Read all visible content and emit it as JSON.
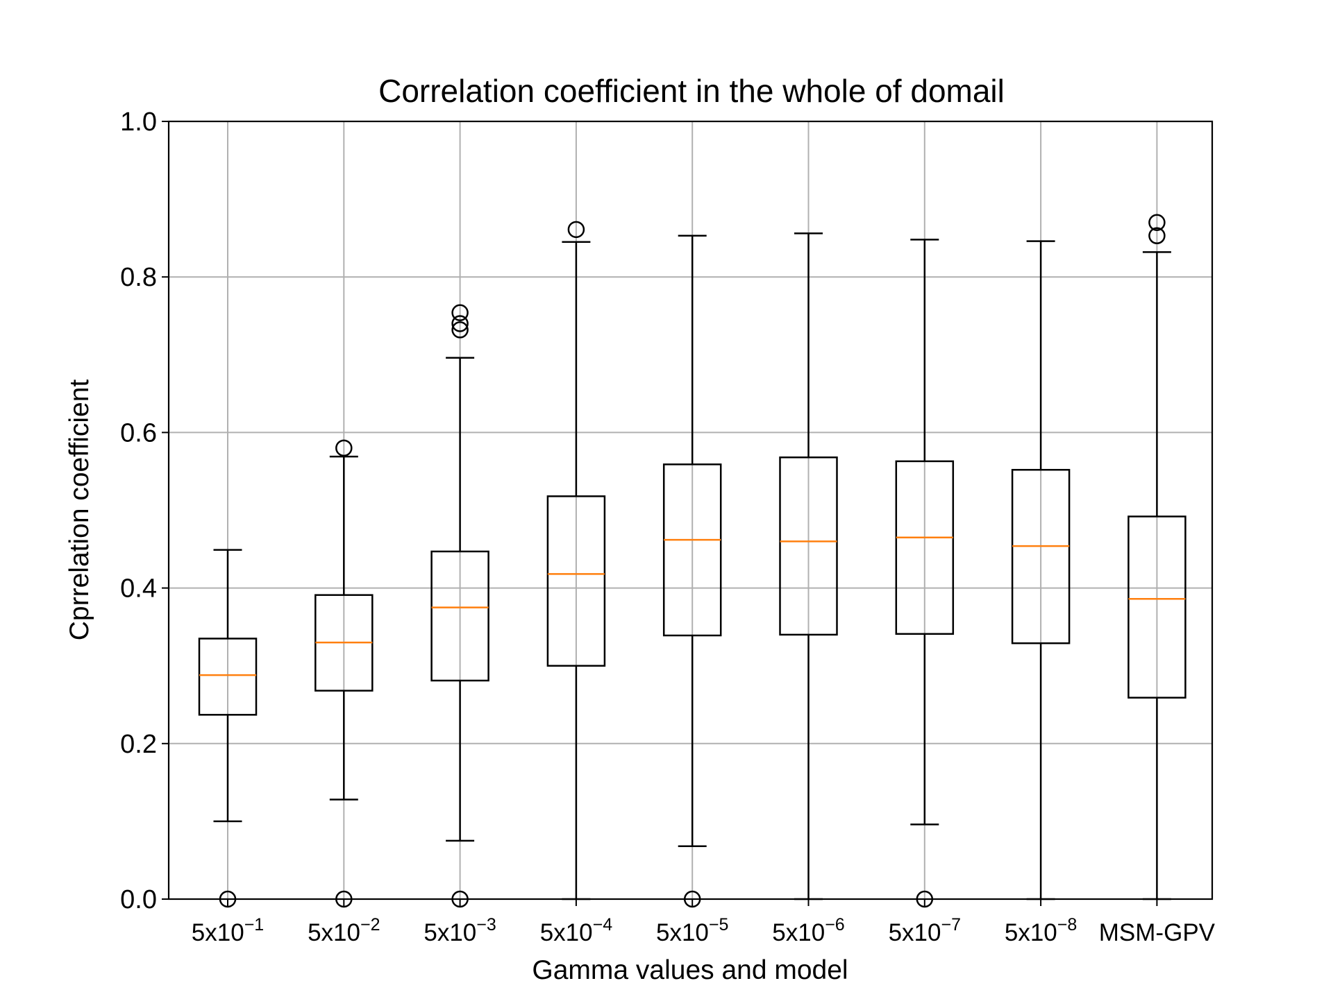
{
  "chart_data": {
    "type": "box",
    "title": "Correlation coefficient in the whole of domail",
    "xlabel": "Gamma values and model",
    "ylabel": "Cprrelation coefficient",
    "ylim": [
      0,
      1.0
    ],
    "yticks": [
      "0.0",
      "0.2",
      "0.4",
      "0.6",
      "0.8",
      "1.0"
    ],
    "grid": true,
    "categories": [
      {
        "base": "5x10",
        "exp": "−1"
      },
      {
        "base": "5x10",
        "exp": "−2"
      },
      {
        "base": "5x10",
        "exp": "−3"
      },
      {
        "base": "5x10",
        "exp": "−4"
      },
      {
        "base": "5x10",
        "exp": "−5"
      },
      {
        "base": "5x10",
        "exp": "−6"
      },
      {
        "base": "5x10",
        "exp": "−7"
      },
      {
        "base": "5x10",
        "exp": "−8"
      },
      {
        "base": "MSM-GPV",
        "exp": ""
      }
    ],
    "boxes": [
      {
        "whisker_low": 0.1,
        "q1": 0.237,
        "median": 0.288,
        "q3": 0.335,
        "whisker_high": 0.449,
        "outliers": [
          0.0
        ]
      },
      {
        "whisker_low": 0.128,
        "q1": 0.268,
        "median": 0.33,
        "q3": 0.391,
        "whisker_high": 0.569,
        "outliers": [
          0.0,
          0.58
        ]
      },
      {
        "whisker_low": 0.075,
        "q1": 0.281,
        "median": 0.375,
        "q3": 0.447,
        "whisker_high": 0.696,
        "outliers": [
          0.0,
          0.732,
          0.74,
          0.754
        ]
      },
      {
        "whisker_low": 0.0,
        "q1": 0.3,
        "median": 0.418,
        "q3": 0.518,
        "whisker_high": 0.845,
        "outliers": [
          0.861
        ]
      },
      {
        "whisker_low": 0.068,
        "q1": 0.339,
        "median": 0.462,
        "q3": 0.559,
        "whisker_high": 0.853,
        "outliers": [
          0.0
        ]
      },
      {
        "whisker_low": 0.0,
        "q1": 0.34,
        "median": 0.46,
        "q3": 0.568,
        "whisker_high": 0.856,
        "outliers": []
      },
      {
        "whisker_low": 0.096,
        "q1": 0.341,
        "median": 0.465,
        "q3": 0.563,
        "whisker_high": 0.848,
        "outliers": [
          0.0
        ]
      },
      {
        "whisker_low": 0.0,
        "q1": 0.329,
        "median": 0.454,
        "q3": 0.552,
        "whisker_high": 0.846,
        "outliers": []
      },
      {
        "whisker_low": 0.0,
        "q1": 0.259,
        "median": 0.386,
        "q3": 0.492,
        "whisker_high": 0.832,
        "outliers": [
          0.853,
          0.87
        ]
      }
    ],
    "colors": {
      "box": "#000000",
      "median": "#ff7f0e",
      "grid": "#b0b0b0"
    }
  }
}
